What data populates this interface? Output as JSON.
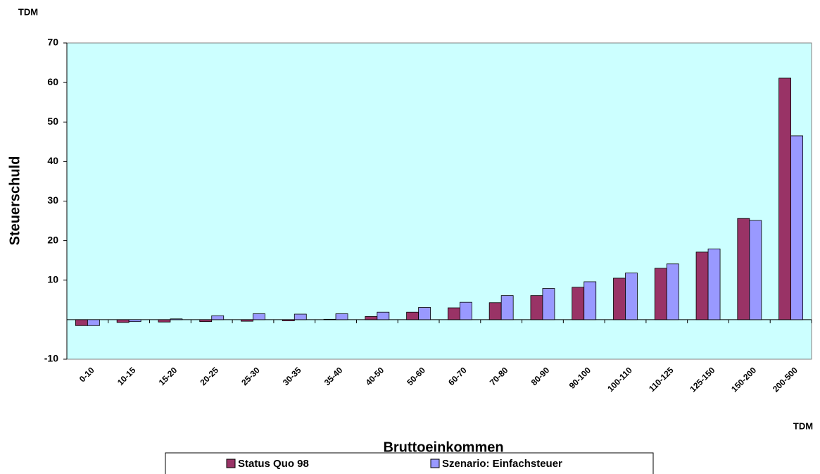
{
  "chart_data": {
    "type": "bar",
    "y_unit": "TDM",
    "x_unit": "TDM",
    "y_label": "Steuerschuld",
    "x_label": "Bruttoeinkommen",
    "categories": [
      "0-10",
      "10-15",
      "15-20",
      "20-25",
      "25-30",
      "30-35",
      "35-40",
      "40-50",
      "50-60",
      "60-70",
      "70-80",
      "80-90",
      "90-100",
      "100-110",
      "110-125",
      "125-150",
      "150-200",
      "200-500"
    ],
    "series": [
      {
        "name": "Status Quo 98",
        "color": "#993366",
        "values": [
          -1.5,
          -0.7,
          -0.6,
          -0.5,
          -0.4,
          -0.3,
          0.1,
          0.8,
          1.9,
          3.0,
          4.3,
          6.1,
          8.2,
          10.5,
          13.0,
          17.1,
          25.6,
          61.1
        ]
      },
      {
        "name": "Szenario: Einfachsteuer",
        "color": "#9999ff",
        "values": [
          -1.5,
          -0.5,
          0.2,
          1.0,
          1.5,
          1.4,
          1.5,
          1.9,
          3.1,
          4.4,
          6.1,
          7.9,
          9.6,
          11.8,
          14.1,
          17.9,
          25.1,
          46.5
        ]
      }
    ],
    "ylim": [
      -10,
      70
    ],
    "yticks": [
      -10,
      10,
      20,
      30,
      40,
      50,
      60,
      70
    ],
    "plot_background": "#ccffff",
    "legend": "bottom"
  }
}
